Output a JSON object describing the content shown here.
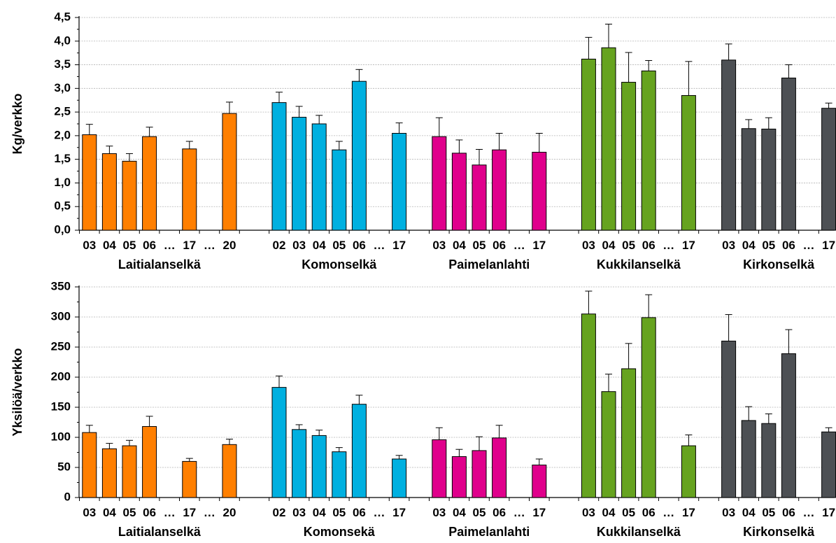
{
  "chart_data": [
    {
      "type": "bar",
      "ylabel": "Kg/verkko",
      "ylim": [
        0,
        4.5
      ],
      "ytick_step": 0.5,
      "ytick_labels": [
        "0,0",
        "0,5",
        "1,0",
        "1,5",
        "2,0",
        "2,5",
        "3,0",
        "3,5",
        "4,0",
        "4,5"
      ],
      "grid": true,
      "error_bars": true,
      "groups": [
        {
          "name": "Laitialanselkä",
          "color": "#ff7f00",
          "tick_labels": [
            "03",
            "04",
            "05",
            "06",
            "…",
            "17",
            "…",
            "20"
          ],
          "values": [
            2.02,
            1.62,
            1.46,
            1.98,
            null,
            1.72,
            null,
            2.47
          ],
          "errors": [
            0.22,
            0.16,
            0.16,
            0.2,
            null,
            0.16,
            null,
            0.24
          ]
        },
        {
          "name": "Komonselkä",
          "color": "#00b0e0",
          "tick_labels": [
            "02",
            "03",
            "04",
            "05",
            "06",
            "…",
            "17"
          ],
          "values": [
            2.7,
            2.39,
            2.25,
            1.7,
            3.15,
            null,
            2.05
          ],
          "errors": [
            0.22,
            0.23,
            0.18,
            0.18,
            0.25,
            null,
            0.22
          ]
        },
        {
          "name": "Paimelanlahti",
          "color": "#e0008c",
          "tick_labels": [
            "03",
            "04",
            "05",
            "06",
            "…",
            "17"
          ],
          "values": [
            1.98,
            1.63,
            1.38,
            1.7,
            null,
            1.65
          ],
          "errors": [
            0.4,
            0.28,
            0.33,
            0.35,
            null,
            0.4
          ]
        },
        {
          "name": "Kukkilanselkä",
          "color": "#66a31f",
          "tick_labels": [
            "03",
            "04",
            "05",
            "06",
            "…",
            "17"
          ],
          "values": [
            3.62,
            3.86,
            3.13,
            3.37,
            null,
            2.85
          ],
          "errors": [
            0.46,
            0.5,
            0.63,
            0.22,
            null,
            0.72
          ]
        },
        {
          "name": "Kirkonselkä",
          "color": "#4d5054",
          "tick_labels": [
            "03",
            "04",
            "05",
            "06",
            "…",
            "17"
          ],
          "values": [
            3.6,
            2.15,
            2.14,
            3.22,
            null,
            2.58
          ],
          "errors": [
            0.34,
            0.19,
            0.24,
            0.28,
            null,
            0.11
          ]
        }
      ]
    },
    {
      "type": "bar",
      "ylabel": "Yksilöä/verkko",
      "ylim": [
        0,
        350
      ],
      "ytick_step": 50,
      "ytick_labels": [
        "0",
        "50",
        "100",
        "150",
        "200",
        "250",
        "300",
        "350"
      ],
      "grid": true,
      "error_bars": true,
      "groups": [
        {
          "name": "Laitialanselkä",
          "color": "#ff7f00",
          "tick_labels": [
            "03",
            "04",
            "05",
            "06",
            "…",
            "17",
            "…",
            "20"
          ],
          "values": [
            108,
            81,
            86,
            118,
            null,
            60,
            null,
            88
          ],
          "errors": [
            12,
            9,
            9,
            17,
            null,
            5,
            null,
            9
          ]
        },
        {
          "name": "Komonsekä",
          "color": "#00b0e0",
          "tick_labels": [
            "02",
            "03",
            "04",
            "05",
            "06",
            "…",
            "17"
          ],
          "values": [
            183,
            113,
            103,
            76,
            155,
            null,
            64
          ],
          "errors": [
            19,
            8,
            9,
            7,
            15,
            null,
            6
          ]
        },
        {
          "name": "Paimelanlahti",
          "color": "#e0008c",
          "tick_labels": [
            "03",
            "04",
            "05",
            "06",
            "…",
            "17"
          ],
          "values": [
            96,
            68,
            78,
            99,
            null,
            54
          ],
          "errors": [
            20,
            12,
            23,
            21,
            null,
            10
          ]
        },
        {
          "name": "Kukkilanselkä",
          "color": "#66a31f",
          "tick_labels": [
            "03",
            "04",
            "05",
            "06",
            "…",
            "17"
          ],
          "values": [
            305,
            176,
            214,
            299,
            null,
            86
          ],
          "errors": [
            38,
            29,
            42,
            38,
            null,
            18
          ]
        },
        {
          "name": "Kirkonselkä",
          "color": "#4d5054",
          "tick_labels": [
            "03",
            "04",
            "05",
            "06",
            "…",
            "17"
          ],
          "values": [
            260,
            128,
            123,
            239,
            null,
            109
          ],
          "errors": [
            44,
            23,
            16,
            40,
            null,
            7
          ]
        }
      ]
    }
  ]
}
